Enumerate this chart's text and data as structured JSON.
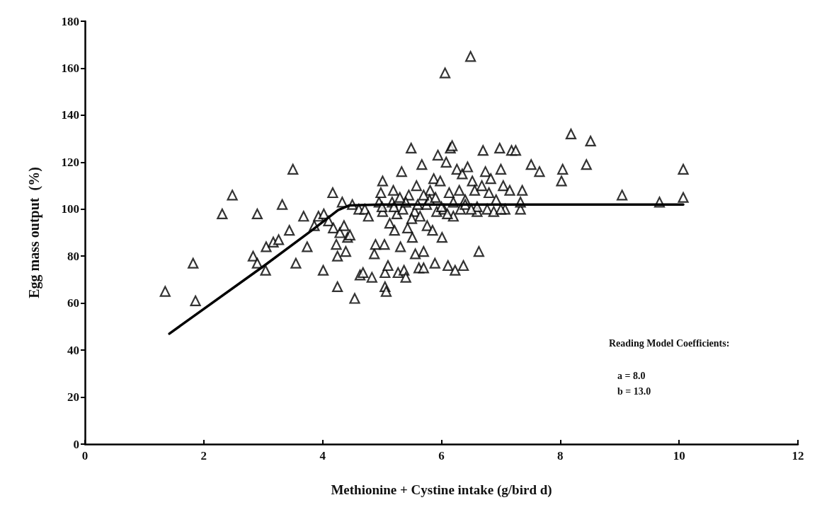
{
  "chart_data": {
    "type": "scatter",
    "xlabel": "Methionine + Cystine intake (g/bird d)",
    "ylabel": "Egg mass output  (%)",
    "xlim": [
      0,
      12
    ],
    "xticks": [
      0,
      2,
      4,
      6,
      8,
      10,
      12
    ],
    "ylim": [
      0,
      180
    ],
    "yticks": [
      0,
      20,
      40,
      60,
      80,
      100,
      120,
      140,
      160,
      180
    ],
    "grid": false,
    "marker": "triangle",
    "annotations": [
      "Reading Model Coefficients:",
      "a = 8.0",
      "b = 13.0"
    ],
    "series": [
      {
        "color": "#000000",
        "x": [
          1.35,
          1.82,
          1.86,
          2.31,
          2.48,
          2.9,
          2.83,
          2.9,
          3.04,
          3.05,
          3.17,
          3.26,
          3.32,
          3.44,
          3.5,
          3.55,
          3.68,
          3.74,
          3.86,
          3.93,
          4.01,
          4.02,
          4.1,
          4.18,
          4.17,
          4.23,
          4.25,
          4.25,
          4.33,
          4.29,
          4.36,
          4.42,
          4.46,
          4.39,
          4.54,
          4.5,
          4.63,
          4.68,
          4.61,
          4.71,
          4.77,
          4.83,
          4.87,
          4.89,
          4.95,
          4.98,
          5.01,
          5.01,
          5.04,
          5.05,
          5.05,
          5.07,
          5.1,
          5.13,
          5.17,
          5.19,
          5.21,
          5.25,
          5.27,
          5.31,
          5.33,
          5.35,
          5.37,
          5.4,
          5.43,
          5.45,
          5.49,
          5.51,
          5.55,
          5.56,
          5.58,
          5.62,
          5.64,
          5.67,
          5.7,
          5.7,
          5.75,
          5.76,
          5.81,
          5.85,
          5.87,
          5.89,
          5.92,
          5.94,
          5.98,
          6.01,
          6.04,
          6.06,
          6.08,
          6.11,
          6.13,
          6.15,
          6.18,
          6.2,
          6.23,
          6.26,
          6.3,
          6.32,
          6.35,
          6.37,
          6.4,
          6.44,
          6.49,
          6.52,
          6.56,
          6.6,
          6.63,
          6.68,
          6.7,
          6.74,
          6.77,
          6.8,
          6.83,
          6.88,
          6.92,
          6.98,
          7.0,
          7.04,
          7.07,
          7.15,
          7.18,
          7.25,
          7.33,
          7.36,
          7.33,
          7.51,
          7.65,
          8.04,
          8.02,
          8.18,
          8.44,
          8.51,
          9.04,
          9.67,
          10.07,
          10.07,
          5.2,
          5.4,
          5.6,
          5.8,
          6.0,
          6.2,
          6.4,
          6.6,
          5.0,
          5.3,
          5.5,
          5.9,
          6.1,
          5.7,
          6.5,
          7.0
        ],
        "values": [
          65,
          77,
          61,
          98,
          106,
          98,
          80,
          77,
          74,
          84,
          86,
          87,
          102,
          91,
          117,
          77,
          97,
          84,
          93,
          97,
          74,
          98,
          95,
          92,
          107,
          85,
          80,
          67,
          103,
          90,
          93,
          88,
          89,
          82,
          62,
          102,
          72,
          73,
          100,
          100,
          97,
          71,
          81,
          85,
          103,
          107,
          112,
          99,
          85,
          73,
          67,
          65,
          76,
          94,
          103,
          108,
          91,
          98,
          73,
          84,
          116,
          100,
          74,
          71,
          92,
          106,
          126,
          88,
          99,
          81,
          110,
          75,
          97,
          119,
          75,
          82,
          102,
          93,
          108,
          91,
          113,
          77,
          99,
          123,
          112,
          88,
          100,
          158,
          120,
          76,
          107,
          126,
          127,
          97,
          74,
          117,
          108,
          100,
          115,
          76,
          104,
          118,
          165,
          112,
          108,
          99,
          82,
          110,
          125,
          116,
          100,
          107,
          113,
          99,
          104,
          126,
          117,
          110,
          100,
          108,
          125,
          125,
          100,
          108,
          103,
          119,
          116,
          117,
          112,
          132,
          119,
          129,
          106,
          103,
          117,
          105,
          101,
          103,
          102,
          104,
          101,
          103,
          102,
          101,
          101,
          105,
          96,
          105,
          98,
          106,
          100,
          100
        ]
      },
      {
        "type": "line",
        "color": "#000000",
        "marker": "none",
        "line_style": "solid",
        "x": [
          1.42,
          3.02,
          3.82,
          4.26,
          4.45,
          5.0,
          10.07
        ],
        "values": [
          47,
          76,
          91,
          99.6,
          101.6,
          102,
          102
        ]
      }
    ]
  }
}
